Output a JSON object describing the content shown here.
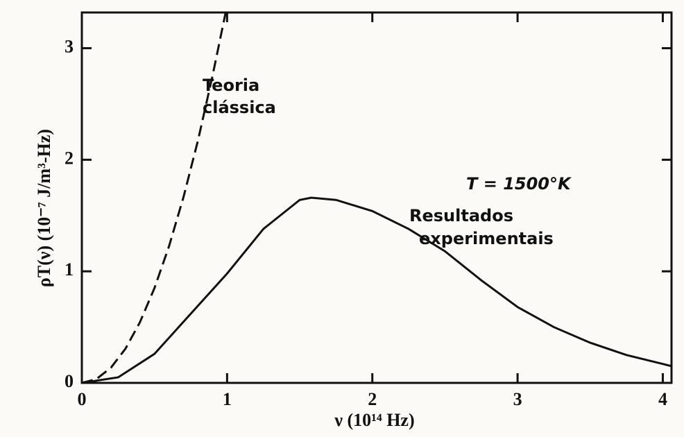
{
  "chart_data": {
    "type": "line",
    "xlabel": "ν (10¹⁴ Hz)",
    "ylabel": "ρT(ν) (10⁻⁷ J/m³-Hz)",
    "annotations": [
      "Teoria",
      "clássica",
      "T = 1500°K",
      "Resultados",
      "experimentais"
    ],
    "series": [
      {
        "color": "#111111",
        "dashed": true,
        "x": [
          0,
          0.1,
          0.2,
          0.3,
          0.4,
          0.5,
          0.6,
          0.7,
          0.8,
          0.9,
          0.99
        ],
        "values": [
          0,
          0.034,
          0.136,
          0.306,
          0.544,
          0.85,
          1.224,
          1.666,
          2.176,
          2.754,
          3.32
        ]
      },
      {
        "color": "#111111",
        "dashed": false,
        "x": [
          0,
          0.25,
          0.5,
          0.75,
          1,
          1.25,
          1.5,
          1.58,
          1.75,
          2,
          2.25,
          2.5,
          2.75,
          3,
          3.25,
          3.5,
          3.75,
          4,
          4.06
        ],
        "values": [
          0,
          0.05,
          0.26,
          0.62,
          0.98,
          1.38,
          1.64,
          1.66,
          1.64,
          1.54,
          1.38,
          1.18,
          0.92,
          0.68,
          0.5,
          0.36,
          0.25,
          0.17,
          0.15
        ]
      }
    ],
    "xlim": [
      0,
      4.06
    ],
    "ylim": [
      0,
      3.32
    ],
    "xticks": [
      0,
      1,
      2,
      3,
      4
    ],
    "yticks": [
      0,
      1,
      2,
      3
    ]
  }
}
